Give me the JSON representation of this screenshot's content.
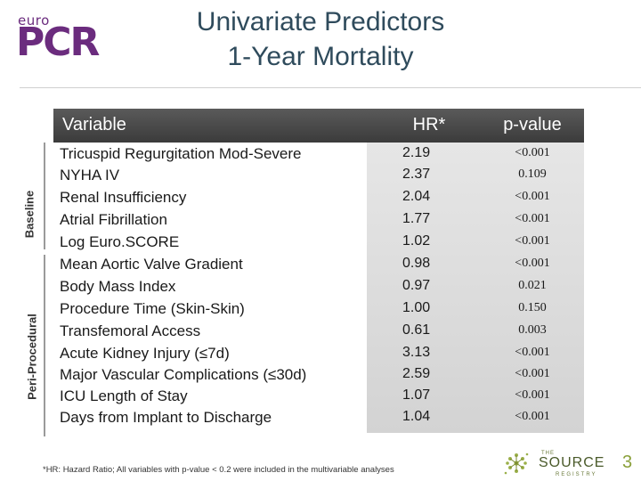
{
  "logo": {
    "top_text": "euro",
    "main_text": "PCR",
    "color": "#6b2c7e"
  },
  "title": {
    "line1": "Univariate Predictors",
    "line2": "1-Year Mortality"
  },
  "sections": {
    "baseline": "Baseline",
    "periprocedural": "Peri-Procedural"
  },
  "table": {
    "headers": {
      "variable": "Variable",
      "hr": "HR*",
      "pvalue": "p-value"
    },
    "rows": [
      {
        "variable": "Tricuspid Regurgitation Mod-Severe",
        "hr": "2.19",
        "p": "<0.001"
      },
      {
        "variable": "NYHA IV",
        "hr": "2.37",
        "p": "0.109"
      },
      {
        "variable": "Renal Insufficiency",
        "hr": "2.04",
        "p": "<0.001"
      },
      {
        "variable": "Atrial Fibrillation",
        "hr": "1.77",
        "p": "<0.001"
      },
      {
        "variable": "Log Euro.SCORE",
        "hr": "1.02",
        "p": "<0.001"
      },
      {
        "variable": "Mean Aortic Valve Gradient",
        "hr": "0.98",
        "p": "<0.001"
      },
      {
        "variable": "Body Mass Index",
        "hr": "0.97",
        "p": "0.021"
      },
      {
        "variable": "Procedure Time (Skin-Skin)",
        "hr": "1.00",
        "p": "0.150"
      },
      {
        "variable": "Transfemoral Access",
        "hr": "0.61",
        "p": "0.003"
      },
      {
        "variable": "Acute Kidney Injury (≤7d)",
        "hr": "3.13",
        "p": "<0.001"
      },
      {
        "variable": "Major Vascular Complications (≤30d)",
        "hr": "2.59",
        "p": "<0.001"
      },
      {
        "variable": "ICU Length of Stay",
        "hr": "1.07",
        "p": "<0.001"
      },
      {
        "variable": "Days from Implant to Discharge",
        "hr": "1.04",
        "p": "<0.001"
      }
    ]
  },
  "footnote": "*HR: Hazard Ratio; All variables with p-value < 0.2 were included in the multivariable analyses",
  "source_logo": {
    "the": "THE",
    "name": "SOURCE",
    "number": "3",
    "registry": "REGISTRY"
  }
}
